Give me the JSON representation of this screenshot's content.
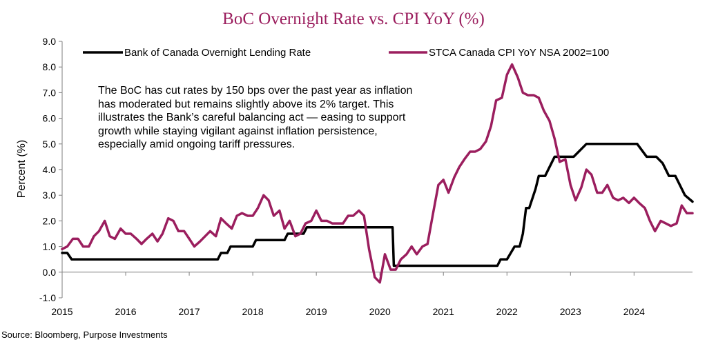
{
  "chart_data": {
    "type": "line",
    "title": "BoC Overnight Rate vs. CPI YoY (%)",
    "title_color": "#9b1e5e",
    "xlabel": "",
    "ylabel": "Percent (%)",
    "ylim": [
      -1.0,
      9.0
    ],
    "xlim": [
      2015.0,
      2024.92
    ],
    "y_ticks": [
      "-1.0",
      "0.0",
      "1.0",
      "2.0",
      "3.0",
      "4.0",
      "5.0",
      "6.0",
      "7.0",
      "8.0",
      "9.0"
    ],
    "x_ticks": [
      "2015",
      "2016",
      "2017",
      "2018",
      "2019",
      "2020",
      "2021",
      "2022",
      "2023",
      "2024"
    ],
    "grid": false,
    "legend_position": "top",
    "annotation": "The BoC has cut rates by 150 bps over the past year as inflation has moderated but remains slightly above its 2% target. This illustrates the Bank’s careful balancing act — easing to support growth while staying vigilant against inflation persistence, especially amid ongoing tariff pressures.",
    "source": "Source: Bloomberg, Purpose Investments",
    "series": [
      {
        "name": "Bank of Canada Overnight Lending Rate",
        "color": "#000000",
        "x": [
          2015.0,
          2015.08,
          2015.15,
          2015.5,
          2015.55,
          2016.0,
          2017.0,
          2017.45,
          2017.5,
          2017.6,
          2017.65,
          2017.7,
          2017.75,
          2018.0,
          2018.05,
          2018.2,
          2018.25,
          2018.5,
          2018.55,
          2018.8,
          2018.85,
          2019.0,
          2019.8,
          2019.85,
          2020.0,
          2020.2,
          2020.22,
          2021.0,
          2021.8,
          2021.85,
          2021.9,
          2022.0,
          2022.12,
          2022.2,
          2022.25,
          2022.3,
          2022.35,
          2022.45,
          2022.5,
          2022.55,
          2022.6,
          2022.7,
          2022.75,
          2022.8,
          2022.95,
          2023.0,
          2023.05,
          2023.25,
          2023.5,
          2023.7,
          2024.0,
          2024.05,
          2024.2,
          2024.35,
          2024.45,
          2024.55,
          2024.6,
          2024.65,
          2024.75,
          2024.8,
          2024.92
        ],
        "values": [
          0.75,
          0.75,
          0.5,
          0.5,
          0.5,
          0.5,
          0.5,
          0.5,
          0.75,
          0.75,
          1.0,
          1.0,
          1.0,
          1.0,
          1.25,
          1.25,
          1.25,
          1.25,
          1.5,
          1.5,
          1.75,
          1.75,
          1.75,
          1.75,
          1.75,
          1.75,
          0.25,
          0.25,
          0.25,
          0.25,
          0.5,
          0.5,
          1.0,
          1.0,
          1.5,
          2.5,
          2.5,
          3.25,
          3.75,
          3.75,
          3.75,
          4.25,
          4.5,
          4.5,
          4.5,
          4.5,
          4.5,
          5.0,
          5.0,
          5.0,
          5.0,
          5.0,
          4.5,
          4.5,
          4.25,
          3.75,
          3.75,
          3.75,
          3.25,
          3.0,
          2.75
        ]
      },
      {
        "name": "STCA Canada CPI YoY NSA 2002=100",
        "color": "#9b1e5e",
        "x": [
          2015.0,
          2015.08,
          2015.17,
          2015.25,
          2015.33,
          2015.42,
          2015.5,
          2015.58,
          2015.67,
          2015.75,
          2015.83,
          2015.92,
          2016.0,
          2016.08,
          2016.17,
          2016.25,
          2016.33,
          2016.42,
          2016.5,
          2016.58,
          2016.67,
          2016.75,
          2016.83,
          2016.92,
          2017.0,
          2017.08,
          2017.17,
          2017.25,
          2017.33,
          2017.42,
          2017.5,
          2017.58,
          2017.67,
          2017.75,
          2017.83,
          2017.92,
          2018.0,
          2018.08,
          2018.17,
          2018.25,
          2018.33,
          2018.42,
          2018.5,
          2018.58,
          2018.67,
          2018.75,
          2018.83,
          2018.92,
          2019.0,
          2019.08,
          2019.17,
          2019.25,
          2019.33,
          2019.42,
          2019.5,
          2019.58,
          2019.67,
          2019.75,
          2019.83,
          2019.92,
          2020.0,
          2020.08,
          2020.17,
          2020.25,
          2020.33,
          2020.42,
          2020.5,
          2020.58,
          2020.67,
          2020.75,
          2020.83,
          2020.92,
          2021.0,
          2021.08,
          2021.17,
          2021.25,
          2021.33,
          2021.42,
          2021.5,
          2021.58,
          2021.67,
          2021.75,
          2021.83,
          2021.92,
          2022.0,
          2022.08,
          2022.17,
          2022.25,
          2022.33,
          2022.42,
          2022.5,
          2022.58,
          2022.67,
          2022.75,
          2022.83,
          2022.92,
          2023.0,
          2023.08,
          2023.17,
          2023.25,
          2023.33,
          2023.42,
          2023.5,
          2023.58,
          2023.67,
          2023.75,
          2023.83,
          2023.92,
          2024.0,
          2024.08,
          2024.17,
          2024.25,
          2024.33,
          2024.42,
          2024.5,
          2024.58,
          2024.67,
          2024.75,
          2024.83,
          2024.92
        ],
        "values": [
          0.9,
          1.0,
          1.3,
          1.3,
          1.0,
          1.0,
          1.4,
          1.6,
          2.0,
          1.4,
          1.3,
          1.7,
          1.5,
          1.5,
          1.3,
          1.1,
          1.3,
          1.5,
          1.2,
          1.5,
          2.1,
          2.0,
          1.6,
          1.6,
          1.3,
          1.0,
          1.2,
          1.4,
          1.6,
          1.4,
          2.1,
          1.9,
          1.7,
          2.2,
          2.3,
          2.2,
          2.2,
          2.5,
          3.0,
          2.8,
          2.2,
          2.4,
          1.7,
          2.0,
          1.4,
          1.5,
          1.9,
          2.0,
          2.4,
          2.0,
          2.0,
          1.9,
          1.9,
          1.9,
          2.2,
          2.2,
          2.4,
          2.2,
          0.9,
          -0.2,
          -0.4,
          0.7,
          0.1,
          0.1,
          0.5,
          0.7,
          1.0,
          0.7,
          1.0,
          1.1,
          2.2,
          3.4,
          3.6,
          3.1,
          3.7,
          4.1,
          4.4,
          4.7,
          4.7,
          4.8,
          5.1,
          5.7,
          6.7,
          6.8,
          7.7,
          8.1,
          7.6,
          7.0,
          6.9,
          6.9,
          6.8,
          6.3,
          5.9,
          5.2,
          4.3,
          4.4,
          3.4,
          2.8,
          3.3,
          4.0,
          3.8,
          3.1,
          3.1,
          3.4,
          2.9,
          2.8,
          2.9,
          2.7,
          2.9,
          2.7,
          2.5,
          2.0,
          1.6,
          2.0,
          1.9,
          1.8,
          1.9,
          2.6,
          2.3,
          2.3
        ]
      }
    ]
  }
}
